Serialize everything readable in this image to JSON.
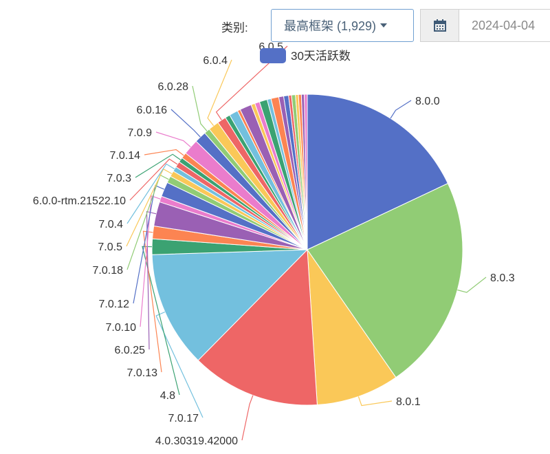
{
  "filter": {
    "label": "类别:",
    "selected": "最高框架 (1,929)",
    "date_value": "2024-04-04"
  },
  "icons": {
    "date": "calendar-icon",
    "dropdown": "caret-down-icon"
  },
  "chart_data": {
    "type": "pie",
    "legend": {
      "label": "30天活跃数",
      "position": "top-center",
      "color": "#5470c6"
    },
    "series": [
      {
        "name": "8.0.0",
        "value": 17.7,
        "color": "#5470c6",
        "labeled": true
      },
      {
        "name": "8.0.3",
        "value": 22.0,
        "color": "#91cc75",
        "labeled": true
      },
      {
        "name": "8.0.1",
        "value": 8.5,
        "color": "#fac858",
        "labeled": true
      },
      {
        "name": "4.0.30319.42000",
        "value": 13.2,
        "color": "#ee6666",
        "labeled": true
      },
      {
        "name": "7.0.17",
        "value": 11.9,
        "color": "#73c0de",
        "labeled": true
      },
      {
        "name": "4.8",
        "value": 1.6,
        "color": "#3ba272",
        "labeled": true
      },
      {
        "name": "7.0.13",
        "value": 1.3,
        "color": "#fc8452",
        "labeled": true
      },
      {
        "name": "6.0.25",
        "value": 2.5,
        "color": "#9a60b4",
        "labeled": true
      },
      {
        "name": "7.0.10",
        "value": 0.6,
        "color": "#ea7ccc",
        "labeled": true
      },
      {
        "name": "7.0.12",
        "value": 1.5,
        "color": "#5470c6",
        "labeled": true
      },
      {
        "name": "7.0.18",
        "value": 0.7,
        "color": "#91cc75",
        "labeled": true
      },
      {
        "name": "7.0.5",
        "value": 0.6,
        "color": "#fac858",
        "labeled": true
      },
      {
        "name": "7.0.4",
        "value": 0.5,
        "color": "#73c0de",
        "labeled": true
      },
      {
        "name": "6.0.0-rtm.21522.10",
        "value": 0.6,
        "color": "#ee6666",
        "labeled": true
      },
      {
        "name": "7.0.3",
        "value": 0.5,
        "color": "#3ba272",
        "labeled": true
      },
      {
        "name": "7.0.14",
        "value": 0.6,
        "color": "#fc8452",
        "labeled": true
      },
      {
        "name": "7.0.9",
        "value": 1.6,
        "color": "#ea7ccc",
        "labeled": true
      },
      {
        "name": "6.0.16",
        "value": 1.2,
        "color": "#5470c6",
        "labeled": true
      },
      {
        "name": "6.0.28",
        "value": 0.6,
        "color": "#91cc75",
        "labeled": true
      },
      {
        "name": "6.0.4",
        "value": 1.1,
        "color": "#fac858",
        "labeled": true
      },
      {
        "name": "6.0.5",
        "value": 0.9,
        "color": "#ee6666",
        "labeled": true
      },
      {
        "name": "",
        "value": 0.5,
        "color": "#3ba272",
        "labeled": false
      },
      {
        "name": "",
        "value": 0.9,
        "color": "#73c0de",
        "labeled": false
      },
      {
        "name": "",
        "value": 0.3,
        "color": "#fc8452",
        "labeled": false
      },
      {
        "name": "",
        "value": 1.2,
        "color": "#9a60b4",
        "labeled": false
      },
      {
        "name": "",
        "value": 0.4,
        "color": "#fac858",
        "labeled": false
      },
      {
        "name": "",
        "value": 0.5,
        "color": "#ea7ccc",
        "labeled": false
      },
      {
        "name": "",
        "value": 0.8,
        "color": "#3ba272",
        "labeled": false
      },
      {
        "name": "",
        "value": 0.4,
        "color": "#73c0de",
        "labeled": false
      },
      {
        "name": "",
        "value": 0.8,
        "color": "#fc8452",
        "labeled": false
      },
      {
        "name": "",
        "value": 0.5,
        "color": "#9a60b4",
        "labeled": false
      },
      {
        "name": "",
        "value": 0.5,
        "color": "#5470c6",
        "labeled": false
      },
      {
        "name": "",
        "value": 0.3,
        "color": "#ee6666",
        "labeled": false
      },
      {
        "name": "",
        "value": 0.4,
        "color": "#91cc75",
        "labeled": false
      },
      {
        "name": "",
        "value": 0.3,
        "color": "#fac858",
        "labeled": false
      },
      {
        "name": "",
        "value": 0.3,
        "color": "#fc8452",
        "labeled": false
      },
      {
        "name": "",
        "value": 0.3,
        "color": "#9a60b4",
        "labeled": false
      },
      {
        "name": "",
        "value": 0.3,
        "color": "#ea7ccc",
        "labeled": false
      }
    ]
  }
}
